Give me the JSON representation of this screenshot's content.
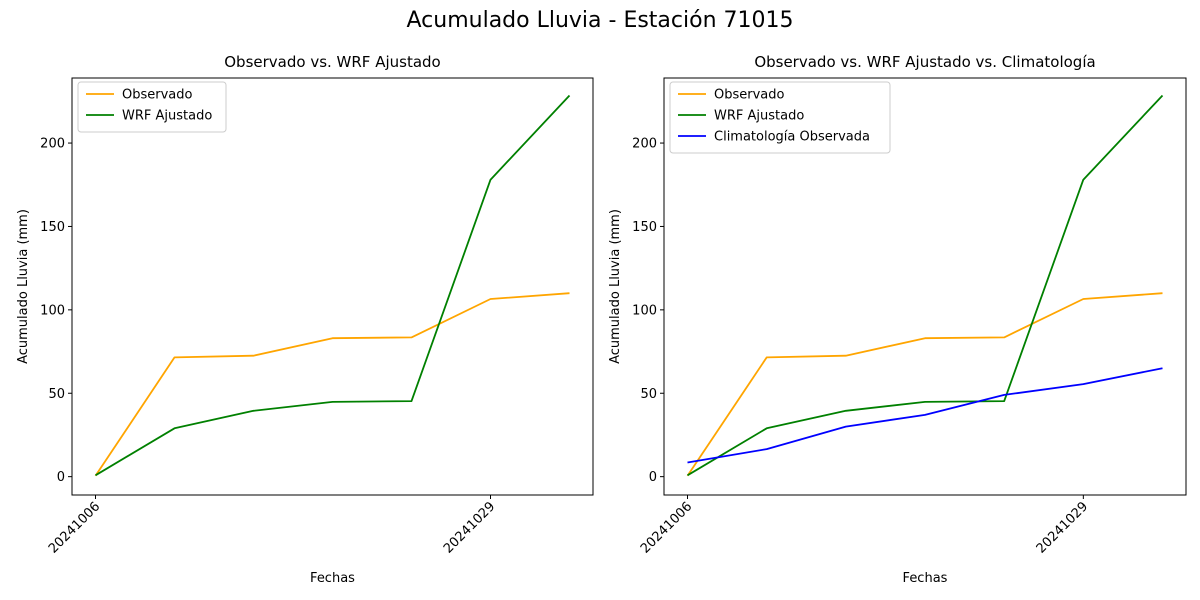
{
  "figure": {
    "title": "Acumulado Lluvia - Estación 71015"
  },
  "chart_data": [
    {
      "type": "line",
      "title": "Observado vs. WRF Ajustado",
      "xlabel": "Fechas",
      "ylabel": "Acumulado Lluvia (mm)",
      "x_tick_labels": [
        "20241006",
        "20241029"
      ],
      "y_ticks": [
        0,
        50,
        100,
        150,
        200
      ],
      "ylim": [
        -11,
        239
      ],
      "legend": "top-left",
      "series": [
        {
          "name": "Observado",
          "color": "#ffa500",
          "values": [
            0.5,
            71.5,
            72.5,
            83,
            83.5,
            106.5,
            110
          ]
        },
        {
          "name": "WRF Ajustado",
          "color": "#008000",
          "values": [
            0.8,
            29,
            39.5,
            44.8,
            45.3,
            178,
            228.5
          ]
        }
      ]
    },
    {
      "type": "line",
      "title": "Observado vs. WRF Ajustado vs. Climatología",
      "xlabel": "Fechas",
      "ylabel": "Acumulado Lluvia (mm)",
      "x_tick_labels": [
        "20241006",
        "20241029"
      ],
      "y_ticks": [
        0,
        50,
        100,
        150,
        200
      ],
      "ylim": [
        -11,
        239
      ],
      "legend": "top-left",
      "series": [
        {
          "name": "Observado",
          "color": "#ffa500",
          "values": [
            0.5,
            71.5,
            72.5,
            83,
            83.5,
            106.5,
            110
          ]
        },
        {
          "name": "WRF Ajustado",
          "color": "#008000",
          "values": [
            0.8,
            29,
            39.5,
            44.8,
            45.3,
            178,
            228.5
          ]
        },
        {
          "name": "Climatología Observada",
          "color": "#0000ff",
          "values": [
            8.5,
            16.5,
            30,
            37,
            49,
            55.5,
            65
          ]
        }
      ]
    }
  ]
}
